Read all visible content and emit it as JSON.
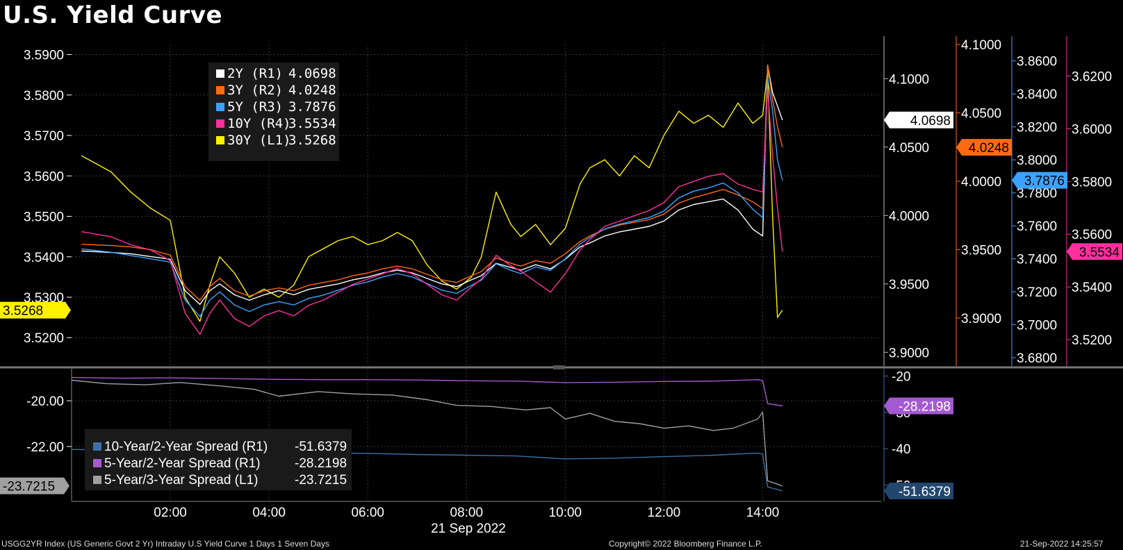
{
  "title": "U.S. Yield Curve",
  "footer": {
    "left": "USGG2YR Index (US Generic Govt 2 Yr) Intraday U.S Yield Curve 1 Days 1 Seven Days",
    "copyright": "Copyright© 2022 Bloomberg Finance L.P.",
    "timestamp": "21-Sep-2022 14:25:57"
  },
  "colors": {
    "y2": "#ffffff",
    "y3": "#ff6a13",
    "y5": "#3da2ff",
    "y10": "#ff2f9e",
    "y30": "#fff200",
    "s102": "#3c6fa8",
    "s52": "#a45ad0",
    "s53": "#a0a0a0"
  },
  "chart_data": [
    {
      "type": "line",
      "title": "U.S. Yield Curve",
      "x_label": "21 Sep 2022",
      "x_ticks": [
        "02:00",
        "04:00",
        "06:00",
        "08:00",
        "10:00",
        "12:00",
        "14:00"
      ],
      "legend": [
        {
          "name": "2Y (R1)",
          "value": "4.0698",
          "color": "#ffffff"
        },
        {
          "name": "3Y (R2)",
          "value": "4.0248",
          "color": "#ff6a13"
        },
        {
          "name": "5Y (R3)",
          "value": "3.7876",
          "color": "#3da2ff"
        },
        {
          "name": "10Y (R4)",
          "value": "3.5534",
          "color": "#ff2f9e"
        },
        {
          "name": "30Y (L1)",
          "value": "3.5268",
          "color": "#fff200"
        }
      ],
      "axes": {
        "L1": {
          "range": [
            3.513,
            3.5925
          ],
          "ticks": [
            "3.5900",
            "3.5800",
            "3.5700",
            "3.5600",
            "3.5500",
            "3.5400",
            "3.5300",
            "3.5200"
          ],
          "last": "3.5268"
        },
        "R1": {
          "range": [
            3.89,
            4.125
          ],
          "ticks": [
            "4.1000",
            "4.0500",
            "4.0000",
            "3.9500",
            "3.9000"
          ],
          "last": "4.0698"
        },
        "R2": {
          "range": [
            3.865,
            4.1
          ],
          "ticks": [
            "4.1000",
            "4.0500",
            "4.0000",
            "3.9500",
            "3.9000"
          ],
          "last": "4.0248"
        },
        "R3": {
          "range": [
            3.675,
            3.87
          ],
          "ticks": [
            "3.8600",
            "3.8400",
            "3.8200",
            "3.8000",
            "3.7800",
            "3.7600",
            "3.7400",
            "3.7200",
            "3.7000",
            "3.6800"
          ],
          "last": "3.7876"
        },
        "R4": {
          "range": [
            3.51,
            3.632
          ],
          "ticks": [
            "3.6200",
            "3.6000",
            "3.5800",
            "3.5600",
            "3.5400",
            "3.5200"
          ],
          "last": "3.5534"
        }
      },
      "series": [
        {
          "name": "30Y (L1)",
          "axis": "L1",
          "color": "#fff200",
          "x": [
            0.2,
            0.8,
            1.2,
            1.6,
            2.0,
            2.3,
            2.6,
            2.8,
            3.0,
            3.3,
            3.6,
            3.9,
            4.2,
            4.5,
            4.8,
            5.1,
            5.4,
            5.7,
            6.0,
            6.3,
            6.6,
            6.9,
            7.2,
            7.5,
            7.8,
            8.1,
            8.3,
            8.6,
            8.9,
            9.1,
            9.4,
            9.7,
            10.0,
            10.3,
            10.5,
            10.8,
            11.1,
            11.4,
            11.7,
            12.0,
            12.3,
            12.6,
            12.9,
            13.2,
            13.5,
            13.8,
            14.0,
            14.1,
            14.2,
            14.3,
            14.4
          ],
          "y": [
            3.565,
            3.561,
            3.556,
            3.552,
            3.549,
            3.53,
            3.524,
            3.533,
            3.54,
            3.536,
            3.53,
            3.532,
            3.53,
            3.533,
            3.54,
            3.542,
            3.544,
            3.545,
            3.543,
            3.544,
            3.546,
            3.544,
            3.538,
            3.534,
            3.532,
            3.535,
            3.54,
            3.556,
            3.548,
            3.545,
            3.548,
            3.543,
            3.547,
            3.558,
            3.562,
            3.564,
            3.56,
            3.565,
            3.562,
            3.57,
            3.576,
            3.573,
            3.575,
            3.572,
            3.578,
            3.573,
            3.575,
            3.586,
            3.55,
            3.525,
            3.5268
          ]
        },
        {
          "name": "2Y (R1)",
          "axis": "R1",
          "color": "#ffffff",
          "x": [
            0.2,
            0.8,
            1.2,
            1.6,
            2.0,
            2.3,
            2.6,
            2.8,
            3.0,
            3.3,
            3.6,
            3.9,
            4.2,
            4.5,
            4.8,
            5.1,
            5.4,
            5.7,
            6.0,
            6.3,
            6.6,
            6.9,
            7.2,
            7.5,
            7.8,
            8.1,
            8.3,
            8.6,
            8.9,
            9.1,
            9.4,
            9.7,
            10.0,
            10.3,
            10.5,
            10.8,
            11.1,
            11.4,
            11.7,
            12.0,
            12.3,
            12.6,
            12.9,
            13.2,
            13.5,
            13.8,
            14.0,
            14.1,
            14.2,
            14.3,
            14.4
          ],
          "y": [
            3.974,
            3.973,
            3.972,
            3.97,
            3.968,
            3.945,
            3.935,
            3.945,
            3.95,
            3.942,
            3.938,
            3.942,
            3.945,
            3.942,
            3.946,
            3.948,
            3.95,
            3.953,
            3.955,
            3.958,
            3.96,
            3.958,
            3.954,
            3.95,
            3.948,
            3.953,
            3.956,
            3.965,
            3.962,
            3.96,
            3.964,
            3.961,
            3.968,
            3.977,
            3.98,
            3.985,
            3.988,
            3.99,
            3.992,
            3.996,
            4.004,
            4.008,
            4.01,
            4.012,
            4.004,
            3.99,
            3.985,
            4.11,
            4.09,
            4.08,
            4.0698
          ]
        },
        {
          "name": "3Y (R2)",
          "axis": "R2",
          "color": "#ff6a13",
          "x": [
            0.2,
            0.8,
            1.2,
            1.6,
            2.0,
            2.3,
            2.6,
            2.8,
            3.0,
            3.3,
            3.6,
            3.9,
            4.2,
            4.5,
            4.8,
            5.1,
            5.4,
            5.7,
            6.0,
            6.3,
            6.6,
            6.9,
            7.2,
            7.5,
            7.8,
            8.1,
            8.3,
            8.6,
            8.9,
            9.1,
            9.4,
            9.7,
            10.0,
            10.3,
            10.5,
            10.8,
            11.1,
            11.4,
            11.7,
            12.0,
            12.3,
            12.6,
            12.9,
            13.2,
            13.5,
            13.8,
            14.0,
            14.1,
            14.2,
            14.3,
            14.4
          ],
          "y": [
            3.954,
            3.953,
            3.952,
            3.95,
            3.946,
            3.923,
            3.913,
            3.923,
            3.929,
            3.92,
            3.916,
            3.92,
            3.922,
            3.92,
            3.924,
            3.926,
            3.928,
            3.931,
            3.933,
            3.936,
            3.938,
            3.936,
            3.932,
            3.928,
            3.926,
            3.931,
            3.934,
            3.944,
            3.94,
            3.938,
            3.942,
            3.94,
            3.947,
            3.956,
            3.96,
            3.965,
            3.968,
            3.97,
            3.972,
            3.976,
            3.984,
            3.988,
            3.991,
            3.994,
            3.99,
            3.985,
            3.98,
            4.085,
            4.06,
            4.04,
            4.0248
          ]
        },
        {
          "name": "5Y (R3)",
          "axis": "R3",
          "color": "#3da2ff",
          "x": [
            0.2,
            0.8,
            1.2,
            1.6,
            2.0,
            2.3,
            2.6,
            2.8,
            3.0,
            3.3,
            3.6,
            3.9,
            4.2,
            4.5,
            4.8,
            5.1,
            5.4,
            5.7,
            6.0,
            6.3,
            6.6,
            6.9,
            7.2,
            7.5,
            7.8,
            8.1,
            8.3,
            8.6,
            8.9,
            9.1,
            9.4,
            9.7,
            10.0,
            10.3,
            10.5,
            10.8,
            11.1,
            11.4,
            11.7,
            12.0,
            12.3,
            12.6,
            12.9,
            13.2,
            13.5,
            13.8,
            14.0,
            14.1,
            14.2,
            14.3,
            14.4
          ],
          "y": [
            3.746,
            3.744,
            3.742,
            3.74,
            3.738,
            3.715,
            3.705,
            3.715,
            3.72,
            3.712,
            3.708,
            3.712,
            3.714,
            3.712,
            3.716,
            3.718,
            3.721,
            3.724,
            3.726,
            3.729,
            3.731,
            3.729,
            3.725,
            3.721,
            3.719,
            3.724,
            3.727,
            3.737,
            3.733,
            3.731,
            3.735,
            3.733,
            3.74,
            3.749,
            3.753,
            3.758,
            3.761,
            3.763,
            3.765,
            3.769,
            3.777,
            3.781,
            3.783,
            3.786,
            3.78,
            3.77,
            3.765,
            3.85,
            3.83,
            3.8,
            3.7876
          ]
        },
        {
          "name": "10Y (R4)",
          "axis": "R4",
          "color": "#ff2f9e",
          "x": [
            0.2,
            0.8,
            1.2,
            1.6,
            2.0,
            2.3,
            2.6,
            2.8,
            3.0,
            3.3,
            3.6,
            3.9,
            4.2,
            4.5,
            4.8,
            5.1,
            5.4,
            5.7,
            6.0,
            6.3,
            6.6,
            6.9,
            7.2,
            7.5,
            7.8,
            8.1,
            8.3,
            8.6,
            8.9,
            9.1,
            9.4,
            9.7,
            10.0,
            10.3,
            10.5,
            10.8,
            11.1,
            11.4,
            11.7,
            12.0,
            12.3,
            12.6,
            12.9,
            13.2,
            13.5,
            13.8,
            14.0,
            14.1,
            14.2,
            14.3,
            14.4
          ],
          "y": [
            3.561,
            3.559,
            3.556,
            3.554,
            3.55,
            3.53,
            3.522,
            3.53,
            3.535,
            3.528,
            3.525,
            3.529,
            3.531,
            3.529,
            3.533,
            3.535,
            3.538,
            3.541,
            3.543,
            3.545,
            3.547,
            3.545,
            3.541,
            3.537,
            3.535,
            3.54,
            3.543,
            3.552,
            3.548,
            3.546,
            3.542,
            3.538,
            3.545,
            3.554,
            3.558,
            3.563,
            3.565,
            3.567,
            3.569,
            3.572,
            3.578,
            3.58,
            3.582,
            3.583,
            3.579,
            3.577,
            3.576,
            3.615,
            3.59,
            3.57,
            3.5534
          ]
        }
      ]
    },
    {
      "type": "line",
      "x_ticks": [
        "02:00",
        "04:00",
        "06:00",
        "08:00",
        "10:00",
        "12:00",
        "14:00"
      ],
      "legend": [
        {
          "name": "10-Year/2-Year Spread (R1)",
          "value": "-51.6379",
          "color": "#3c6fa8"
        },
        {
          "name": "5-Year/2-Year Spread (R1)",
          "value": "-28.2198",
          "color": "#a45ad0"
        },
        {
          "name": "5-Year/3-Year Spread (L1)",
          "value": "-23.7215",
          "color": "#a0a0a0"
        }
      ],
      "axes": {
        "L1": {
          "range": [
            -24.4,
            -18.6
          ],
          "ticks": [
            "-20.00",
            "-22.00"
          ],
          "last": "-23.7215"
        },
        "R1": {
          "range": [
            -54.5,
            -18
          ],
          "ticks": [
            "-20",
            "-30",
            "-40",
            "-50"
          ],
          "last_102": "-51.6379",
          "last_52": "-28.2198"
        }
      },
      "series": [
        {
          "name": "10-Year/2-Year Spread (R1)",
          "axis": "R1",
          "color": "#3c6fa8",
          "x": [
            0.0,
            1.0,
            2.0,
            3.0,
            4.0,
            5.0,
            6.0,
            7.0,
            8.0,
            9.0,
            10.0,
            11.0,
            12.0,
            13.0,
            13.9,
            14.0,
            14.1,
            14.4
          ],
          "y": [
            -40.2,
            -40.4,
            -40.6,
            -40.9,
            -41.0,
            -41.1,
            -41.3,
            -41.6,
            -41.8,
            -42.0,
            -42.8,
            -42.6,
            -42.2,
            -41.8,
            -41.2,
            -41.5,
            -50.5,
            -51.6379
          ]
        },
        {
          "name": "5-Year/2-Year Spread (R1)",
          "axis": "R1",
          "color": "#a45ad0",
          "x": [
            0.0,
            1.0,
            2.0,
            3.0,
            4.0,
            5.0,
            6.0,
            7.0,
            8.0,
            9.0,
            10.0,
            11.0,
            12.0,
            13.0,
            13.9,
            14.0,
            14.1,
            14.4
          ],
          "y": [
            -20.4,
            -20.6,
            -20.5,
            -20.7,
            -20.9,
            -21.0,
            -21.0,
            -21.1,
            -21.3,
            -21.4,
            -21.8,
            -21.7,
            -21.5,
            -21.4,
            -21.0,
            -21.3,
            -27.6,
            -28.2198
          ]
        },
        {
          "name": "5-Year/3-Year Spread (L1)",
          "axis": "L1",
          "color": "#a0a0a0",
          "x": [
            0.0,
            0.7,
            1.5,
            2.2,
            3.0,
            3.7,
            4.2,
            5.0,
            5.7,
            6.5,
            7.2,
            7.8,
            8.5,
            9.2,
            9.7,
            10.0,
            10.5,
            11.0,
            11.5,
            12.0,
            12.5,
            13.0,
            13.4,
            13.9,
            14.0,
            14.1,
            14.4
          ],
          "y": [
            -19.1,
            -19.25,
            -19.3,
            -19.2,
            -19.35,
            -19.5,
            -19.8,
            -19.6,
            -19.7,
            -19.75,
            -19.95,
            -20.2,
            -20.25,
            -20.4,
            -20.3,
            -20.8,
            -20.55,
            -20.9,
            -21.0,
            -21.2,
            -21.1,
            -21.3,
            -21.2,
            -20.8,
            -20.5,
            -23.5,
            -23.7215
          ]
        }
      ]
    }
  ]
}
